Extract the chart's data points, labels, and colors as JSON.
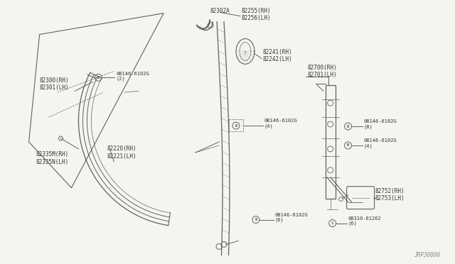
{
  "bg_color": "#f5f5f0",
  "line_color": "#606060",
  "text_color": "#333333",
  "fig_width": 6.4,
  "fig_height": 3.72,
  "watermark": "JRP30000",
  "parts_labels": {
    "82300": "82300(RH)\n82301(LH)",
    "82302A": "82302A",
    "82255": "82255(RH)\n82256(LH)",
    "82241": "82241(RH)\n82242(LH)",
    "B4_top": "B 08146-6102G\n(4)",
    "82220": "82220(RH)\n82221(LH)",
    "82700": "82700(RH)\n82701(LH)",
    "B8": "B 08146-6102G\n(8)",
    "B4_mid": "B 08146-6102G\n(4)",
    "82335M": "82335M(RH)\n82335N(LH)",
    "B6": "B 08146-6102G\n(6)",
    "82752": "82752(RH)\n82753(LH)",
    "S6": "S 08310-61262\n(6)",
    "B2": "B 08146-6102G\n(2)"
  }
}
